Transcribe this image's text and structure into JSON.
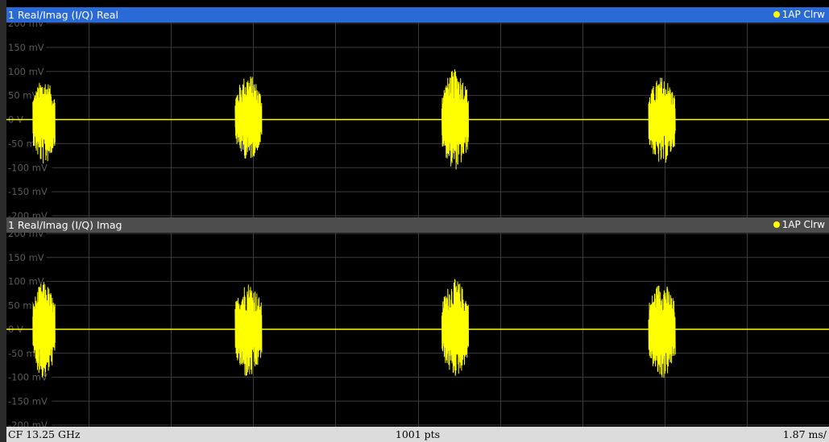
{
  "panes": [
    {
      "title": "1 Real/Imag (I/Q) Real",
      "trace_label": "1AP Clrw",
      "header_active": true
    },
    {
      "title": "1 Real/Imag (I/Q) Imag",
      "trace_label": "1AP Clrw",
      "header_active": false
    }
  ],
  "footer": {
    "center_frequency": "CF 13.25 GHz",
    "points": "1001 pts",
    "span": "1.87 ms/"
  },
  "colors": {
    "trace": "#ffff00",
    "header_active": "#2a6ad6",
    "header_inactive": "#4d4d4d",
    "grid": "#3c3c3c",
    "background": "#000000"
  },
  "chart_data": [
    {
      "type": "line",
      "title": "1 Real/Imag (I/Q) Real",
      "legend": [
        "1AP Clrw"
      ],
      "legend_position": "top-right",
      "y_tick_labels": [
        "200 mV",
        "150 mV",
        "100 mV",
        "50 mV",
        "0 V",
        "-50 mV",
        "-100 mV",
        "-150 mV",
        "-200 mV"
      ],
      "ylim_mV": [
        -200,
        200
      ],
      "x_divisions": 10,
      "x_per_division_ms": 1.87,
      "points": 1001,
      "grid": true,
      "bursts": [
        {
          "start_ms": 0.6,
          "end_ms": 1.1,
          "peak_mV": 85,
          "trough_mV": -95
        },
        {
          "start_ms": 5.2,
          "end_ms": 5.8,
          "peak_mV": 95,
          "trough_mV": -85
        },
        {
          "start_ms": 9.9,
          "end_ms": 10.5,
          "peak_mV": 105,
          "trough_mV": -105
        },
        {
          "start_ms": 14.6,
          "end_ms": 15.2,
          "peak_mV": 90,
          "trough_mV": -95
        }
      ],
      "baseline_mV": 0
    },
    {
      "type": "line",
      "title": "1 Real/Imag (I/Q) Imag",
      "legend": [
        "1AP Clrw"
      ],
      "legend_position": "top-right",
      "y_tick_labels": [
        "200 mV",
        "150 mV",
        "100 mV",
        "50 mV",
        "0 V",
        "-50 mV",
        "-100 mV",
        "-150 mV",
        "-200 mV"
      ],
      "ylim_mV": [
        -200,
        200
      ],
      "x_divisions": 10,
      "x_per_division_ms": 1.87,
      "points": 1001,
      "grid": true,
      "bursts": [
        {
          "start_ms": 0.6,
          "end_ms": 1.1,
          "peak_mV": 100,
          "trough_mV": -105
        },
        {
          "start_ms": 5.2,
          "end_ms": 5.8,
          "peak_mV": 100,
          "trough_mV": -105
        },
        {
          "start_ms": 9.9,
          "end_ms": 10.5,
          "peak_mV": 105,
          "trough_mV": -100
        },
        {
          "start_ms": 14.6,
          "end_ms": 15.2,
          "peak_mV": 100,
          "trough_mV": -105
        }
      ],
      "baseline_mV": 0
    }
  ]
}
